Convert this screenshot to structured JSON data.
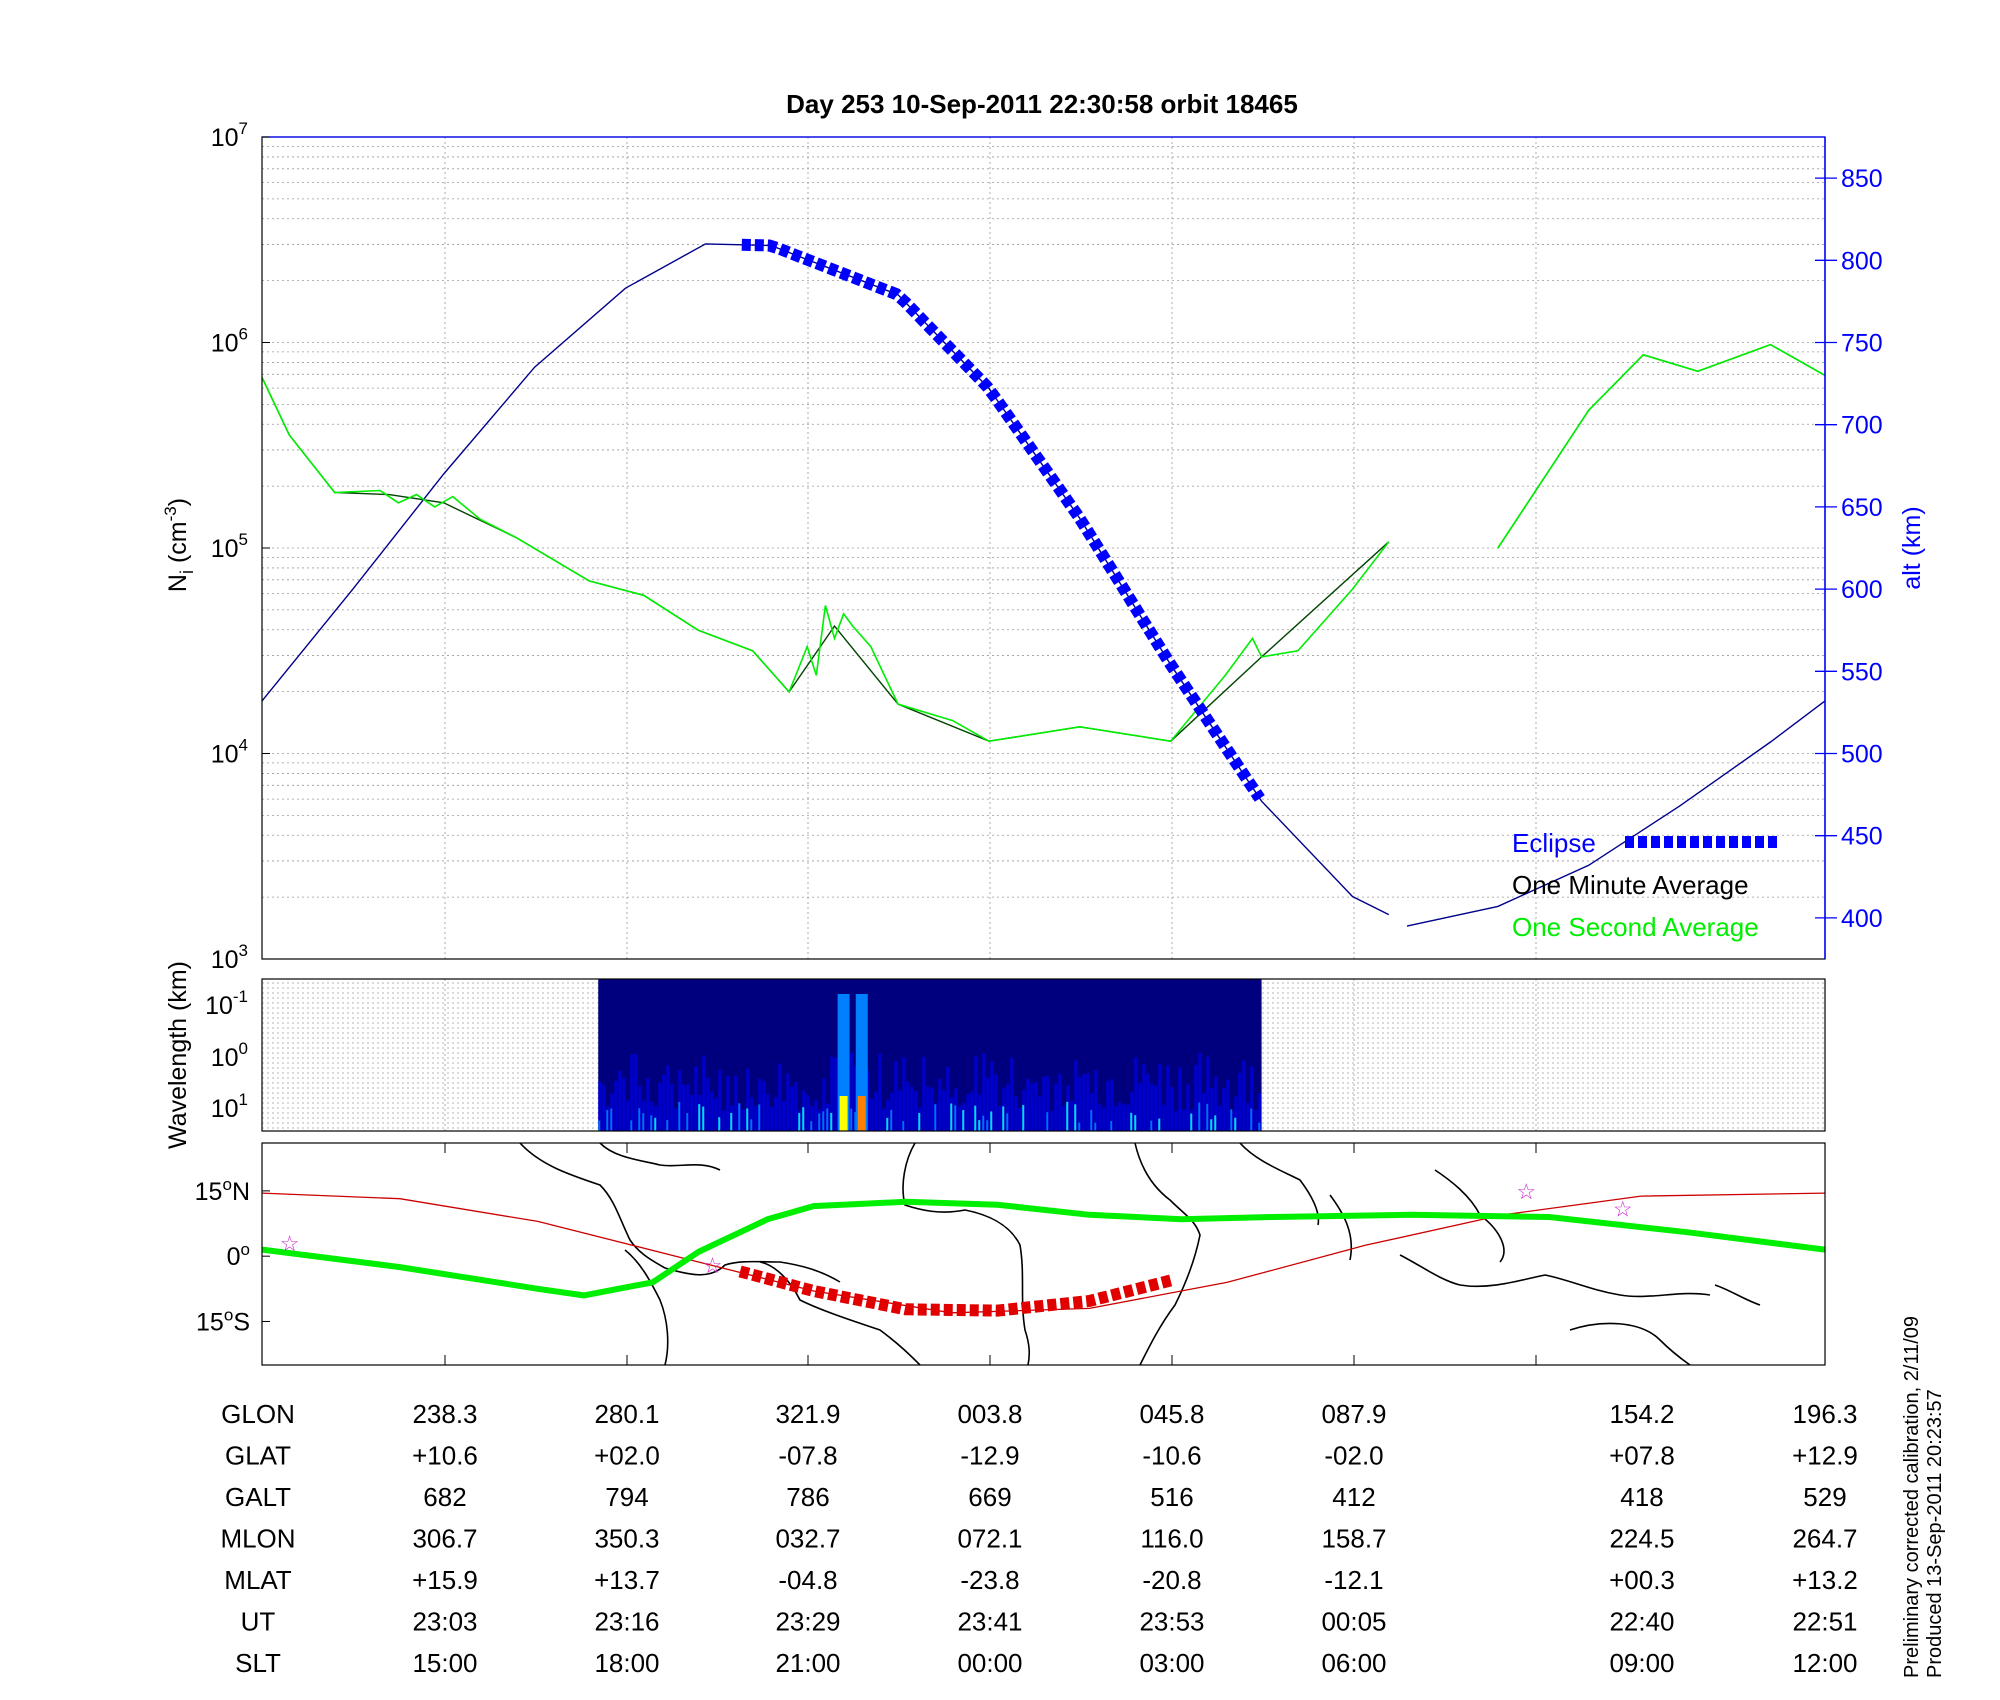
{
  "title": "Day 253  10-Sep-2011 22:30:58   orbit 18465",
  "colors": {
    "blue": "#0000ff",
    "navy": "#00008b",
    "green": "#00ee00",
    "dark_green": "#004400",
    "red": "#e00000",
    "orbit_red": "#cc0000",
    "magenta": "#cc33cc"
  },
  "chart_data": [
    {
      "type": "line",
      "name": "ion-density",
      "ylabel_left": "N",
      "ylabel_left_sub": "i",
      "ylabel_left_units": " (cm",
      "ylabel_left_exp": "-3",
      "ylabel_left_close": ")",
      "ylabel_right": "alt (km)",
      "y_left_scale": "log",
      "y_left_ticks": [
        {
          "base": "10",
          "exp": "3"
        },
        {
          "base": "10",
          "exp": "4"
        },
        {
          "base": "10",
          "exp": "5"
        },
        {
          "base": "10",
          "exp": "6"
        },
        {
          "base": "10",
          "exp": "7"
        }
      ],
      "y_left_range": [
        3,
        7
      ],
      "y_right_range": [
        375,
        875
      ],
      "y_right_ticks": [
        "400",
        "450",
        "500",
        "550",
        "600",
        "650",
        "700",
        "750",
        "800",
        "850"
      ],
      "x_range": [
        0,
        8.6
      ],
      "legend": [
        {
          "label": "Eclipse",
          "color": "#0000ff",
          "style": "dashed-thick"
        },
        {
          "label": "One Minute Average",
          "color": "#000000",
          "style": "line"
        },
        {
          "label": "One Second Average",
          "color": "#00ee00",
          "style": "line"
        }
      ],
      "altitude_series": {
        "name": "alt (km)",
        "segments": [
          {
            "x": [
              0,
              0.5,
              1.0,
              1.5,
              2.0,
              2.44,
              2.8,
              3.5,
              4.0,
              4.5,
              5.0,
              5.5,
              6.0,
              6.2
            ],
            "y": [
              532,
              600,
              670,
              735,
              783,
              810,
              809,
              779,
              722,
              643,
              554,
              471,
              413,
              402
            ]
          },
          {
            "x": [
              6.3,
              6.8,
              7.3,
              7.8,
              8.3,
              8.6
            ],
            "y": [
              395,
              407,
              432,
              468,
              507,
              532
            ]
          }
        ]
      },
      "eclipse_x": [
        2.64,
        5.5
      ],
      "minute_average": {
        "name": "One Minute Average",
        "segments": [
          {
            "x": [
              0,
              0.15,
              0.4,
              0.7,
              1.0,
              1.4,
              1.8,
              2.1,
              2.4,
              2.7,
              2.9,
              3.15,
              3.5,
              4.0,
              4.5,
              5.0,
              5.5,
              6.2
            ],
            "y": [
              5.83,
              5.55,
              5.27,
              5.26,
              5.22,
              5.05,
              4.84,
              4.77,
              4.6,
              4.5,
              4.3,
              4.62,
              4.24,
              4.06,
              4.13,
              4.06,
              4.47,
              5.03
            ]
          },
          {
            "x": [
              6.8,
              7.3,
              7.6,
              7.9,
              8.3,
              8.6
            ],
            "y": [
              5.0,
              5.67,
              5.94,
              5.86,
              5.99,
              5.84
            ]
          }
        ]
      },
      "second_average": {
        "name": "One Second Average",
        "segments": [
          {
            "x": [
              0,
              0.15,
              0.4,
              0.65,
              0.75,
              0.85,
              0.95,
              1.05,
              1.2,
              1.4,
              1.8,
              2.1,
              2.4,
              2.7,
              2.9,
              3.0,
              3.05,
              3.1,
              3.15,
              3.2,
              3.25,
              3.35,
              3.5,
              3.8,
              4.0,
              4.5,
              5.0,
              5.3,
              5.45,
              5.5,
              5.7,
              6.0,
              6.2
            ],
            "y": [
              5.83,
              5.55,
              5.27,
              5.28,
              5.22,
              5.26,
              5.2,
              5.25,
              5.14,
              5.05,
              4.84,
              4.77,
              4.6,
              4.5,
              4.3,
              4.52,
              4.38,
              4.72,
              4.56,
              4.68,
              4.62,
              4.52,
              4.24,
              4.16,
              4.06,
              4.13,
              4.06,
              4.38,
              4.56,
              4.47,
              4.5,
              4.8,
              5.03
            ]
          },
          {
            "x": [
              6.8,
              7.3,
              7.6,
              7.9,
              8.3,
              8.6
            ],
            "y": [
              5.0,
              5.67,
              5.94,
              5.86,
              5.99,
              5.84
            ]
          }
        ]
      }
    },
    {
      "type": "heatmap",
      "name": "wavelength-spectrogram",
      "ylabel": "Wavelength (km)",
      "y_ticks": [
        {
          "base": "10",
          "exp": "-1"
        },
        {
          "base": "10",
          "exp": "0"
        },
        {
          "base": "10",
          "exp": "1"
        }
      ],
      "data_x_range": [
        1.85,
        5.5
      ],
      "features": [
        {
          "x": 3.2,
          "intensity": "high",
          "description_color": "yellow-orange"
        },
        {
          "x": 3.3,
          "intensity": "high",
          "description_color": "orange"
        }
      ],
      "colormap": [
        "#00007f",
        "#0000ff",
        "#007fff",
        "#00ffff",
        "#7fff7f",
        "#ffff00",
        "#ff7f00"
      ]
    },
    {
      "type": "line",
      "name": "ground-track-map",
      "y_ticks": [
        {
          "value": "15",
          "deg": "o",
          "hemi": "N"
        },
        {
          "value": "0",
          "deg": "o",
          "hemi": ""
        },
        {
          "value": "15",
          "deg": "o",
          "hemi": "S"
        }
      ],
      "lon_range": [
        -140,
        200
      ],
      "lat_range": [
        -25,
        26
      ],
      "orbit_track": {
        "lon": [
          -140,
          -110,
          -80,
          -50,
          -20,
          10,
          40,
          70,
          100,
          130,
          160,
          200
        ],
        "lat": [
          14.5,
          13.2,
          8.0,
          0.0,
          -8.0,
          -13.0,
          -12.0,
          -6.0,
          2.5,
          9.5,
          13.8,
          14.5
        ]
      },
      "eclipse_track": {
        "lon": [
          -36,
          -20,
          0,
          20,
          40,
          58
        ],
        "lat": [
          -3.5,
          -8.0,
          -12.2,
          -12.5,
          -10.3,
          -5.5
        ]
      },
      "magnetic_equator": {
        "lon": [
          -140,
          -110,
          -80,
          -70,
          -55,
          -45,
          -30,
          -20,
          0,
          20,
          40,
          60,
          80,
          110,
          140,
          170,
          200
        ],
        "lat": [
          1.5,
          -2.5,
          -7.5,
          -9.0,
          -6.0,
          1.0,
          8.5,
          11.5,
          12.5,
          11.8,
          9.5,
          8.5,
          9.0,
          9.5,
          9.0,
          5.5,
          1.5
        ]
      },
      "stars": [
        {
          "lon": -134,
          "lat": 3.0
        },
        {
          "lon": -42,
          "lat": -2.0
        },
        {
          "lon": 135,
          "lat": 15.0
        },
        {
          "lon": 156,
          "lat": 11.0
        }
      ]
    }
  ],
  "coord_table": {
    "rows": [
      {
        "label": "GLON",
        "values": [
          "238.3",
          "280.1",
          "321.9",
          "003.8",
          "045.8",
          "087.9",
          "154.2",
          "196.3"
        ]
      },
      {
        "label": "GLAT",
        "values": [
          "+10.6",
          "+02.0",
          "-07.8",
          "-12.9",
          "-10.6",
          "-02.0",
          "+07.8",
          "+12.9"
        ]
      },
      {
        "label": "GALT",
        "values": [
          "682",
          "794",
          "786",
          "669",
          "516",
          "412",
          "418",
          "529"
        ]
      },
      {
        "label": "MLON",
        "values": [
          "306.7",
          "350.3",
          "032.7",
          "072.1",
          "116.0",
          "158.7",
          "224.5",
          "264.7"
        ]
      },
      {
        "label": "MLAT",
        "values": [
          "+15.9",
          "+13.7",
          "-04.8",
          "-23.8",
          "-20.8",
          "-12.1",
          "+00.3",
          "+13.2"
        ]
      },
      {
        "label": "UT",
        "values": [
          "23:03",
          "23:16",
          "23:29",
          "23:41",
          "23:53",
          "00:05",
          "22:40",
          "22:51"
        ]
      },
      {
        "label": "SLT",
        "values": [
          "15:00",
          "18:00",
          "21:00",
          "00:00",
          "03:00",
          "06:00",
          "09:00",
          "12:00"
        ]
      }
    ]
  },
  "footnote": {
    "line1": "Preliminary corrected calibration, 2/11/09",
    "line2": "Produced 13-Sep-2011 20:23:57"
  }
}
